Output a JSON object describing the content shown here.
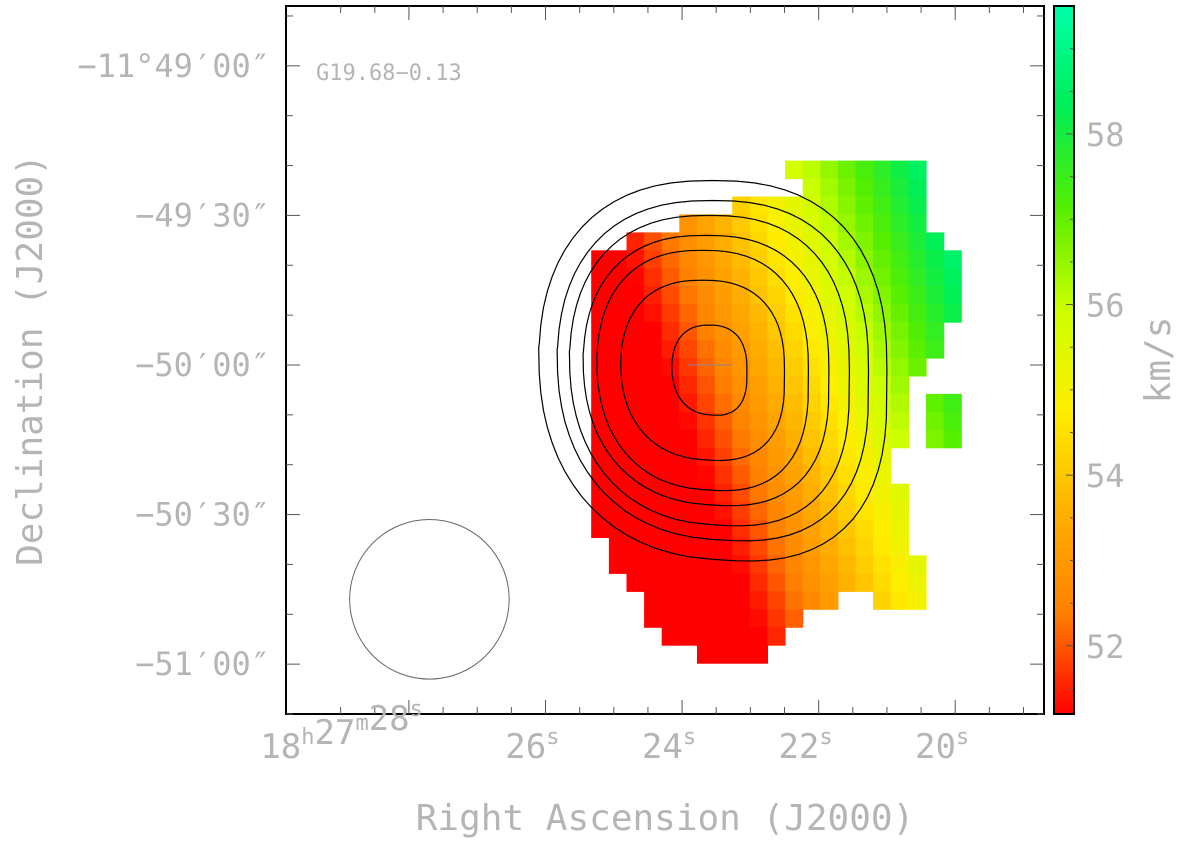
{
  "chart_data": {
    "type": "heatmap",
    "source_label": "G19.68−0.13",
    "xlabel": "Right Ascension (J2000)",
    "ylabel": "Declination (J2000)",
    "colorbar_label": "km/s",
    "x_ticks": [
      {
        "value_s": 28,
        "parts": [
          [
            "18",
            "h"
          ],
          [
            "27",
            "m"
          ],
          [
            "28",
            "s"
          ]
        ]
      },
      {
        "value_s": 26,
        "parts": [
          [
            "26",
            "s"
          ]
        ]
      },
      {
        "value_s": 24,
        "parts": [
          [
            "24",
            "s"
          ]
        ]
      },
      {
        "value_s": 22,
        "parts": [
          [
            "22",
            "s"
          ]
        ]
      },
      {
        "value_s": 20,
        "parts": [
          [
            "20",
            "s"
          ]
        ]
      }
    ],
    "y_ticks": [
      {
        "value_arcsec": 0,
        "label": "−11°49′00″"
      },
      {
        "value_arcsec": -30,
        "label": "−49′30″"
      },
      {
        "value_arcsec": -60,
        "label": "−50′00″"
      },
      {
        "value_arcsec": -90,
        "label": "−50′30″"
      },
      {
        "value_arcsec": -120,
        "label": "−51′00″"
      }
    ],
    "x_range_s": [
      29.8,
      18.7
    ],
    "y_range_arcsec": [
      12,
      -130
    ],
    "colorbar_ticks": [
      52,
      54,
      56,
      58
    ],
    "colorbar_range": [
      51.2,
      59.5
    ],
    "colormap": [
      "#ff0000",
      "#ff8000",
      "#ffb000",
      "#ffee00",
      "#ccff00",
      "#55ee00",
      "#00ee55",
      "#00ffaa"
    ],
    "pixel_grid": {
      "ra0_s": 25.33,
      "dec0_arcsec": -19.0,
      "dra_s": 0.258,
      "ddec_arcsec": 3.6,
      "rows": [
        "...........XXXXXXXX..",
        "............XXXXXXX..",
        "........XXXXXXXXXXX..",
        ".....XXXXXXXXXXXXXX..",
        "..XXXXXXXXXXXXXXXXXX.",
        "XXXXXXXXXXXXXXXXXXXXX",
        "XXXXXXXXXXXXXXXXXXXXX",
        "XXXXXXXXXXXXXXXXXXXXX",
        "XXXXXXXXXXXXXXXXXXXXX",
        "XXXXXXXXXXXXXXXXXXXX.",
        "XXXXXXXXXXXXXXXXXXXX.",
        "XXXXXXXXXXXXXXXXXXX..",
        "XXXXXXXXXXXXXXXXXX...",
        "XXXXXXXXXXXXXXXXXX.XX",
        "XXXXXXXXXXXXXXXXXX.XX",
        "XXXXXXXXXXXXXXXXXX.XX",
        "XXXXXXXXXXXXXXXXX....",
        "XXXXXXXXXXXXXXXXX....",
        "XXXXXXXXXXXXXXXXXX...",
        "XXXXXXXXXXXXXXXXXX...",
        "XXXXXXXXXXXXXXXXXX...",
        ".XXXXXXXXXXXXXXXXX...",
        ".XXXXXXXXXXXXXXXXXX..",
        "..XXXXXXXXXXXXXXXXX..",
        "...XXXXXXXXXXX..XXX..",
        "...XXXXXXXXX.........",
        "....XXXXXXX..........",
        "......XXXX..........."
      ],
      "velocity_model": {
        "v0": 51.3,
        "ra_slope": 1.55,
        "dec_slope": -0.04,
        "ra_anchor_s": 25.33,
        "dec_anchor_arcsec": -19.0,
        "min": 51.2,
        "max": 59.5
      }
    },
    "contours": [
      {
        "level": 1,
        "center": [
          23.55,
          -61
        ],
        "rx_s": 2.55,
        "ry_arcsec": 38,
        "dec_top": -27,
        "dec_bottom": -102
      },
      {
        "level": 2,
        "center": [
          23.55,
          -61
        ],
        "rx_s": 2.28,
        "ry_arcsec": 34,
        "dec_top": -31,
        "dec_bottom": -98
      },
      {
        "level": 3,
        "center": [
          23.6,
          -61
        ],
        "rx_s": 2.05,
        "ry_arcsec": 31,
        "dec_top": -33,
        "dec_bottom": -95
      },
      {
        "level": 4,
        "center": [
          23.65,
          -61
        ],
        "rx_s": 1.8,
        "ry_arcsec": 27,
        "dec_top": -36,
        "dec_bottom": -90
      },
      {
        "level": 5,
        "center": [
          23.7,
          -61
        ],
        "rx_s": 1.55,
        "ry_arcsec": 24,
        "dec_top": -40,
        "dec_bottom": -86
      },
      {
        "level": 6,
        "center": [
          23.7,
          -61
        ],
        "rx_s": 1.2,
        "ry_arcsec": 18,
        "dec_top": -44,
        "dec_bottom": -79
      },
      {
        "level": 7,
        "center": [
          23.6,
          -61
        ],
        "rx_s": 0.55,
        "ry_arcsec": 9,
        "dec_top": -52,
        "dec_bottom": -70
      }
    ],
    "peak_marker": {
      "ra_s": 23.6,
      "dec_arcsec": -60
    },
    "beam": {
      "ra_s": 27.7,
      "dec_arcsec": -107,
      "diameter_arcsec": 32
    }
  }
}
